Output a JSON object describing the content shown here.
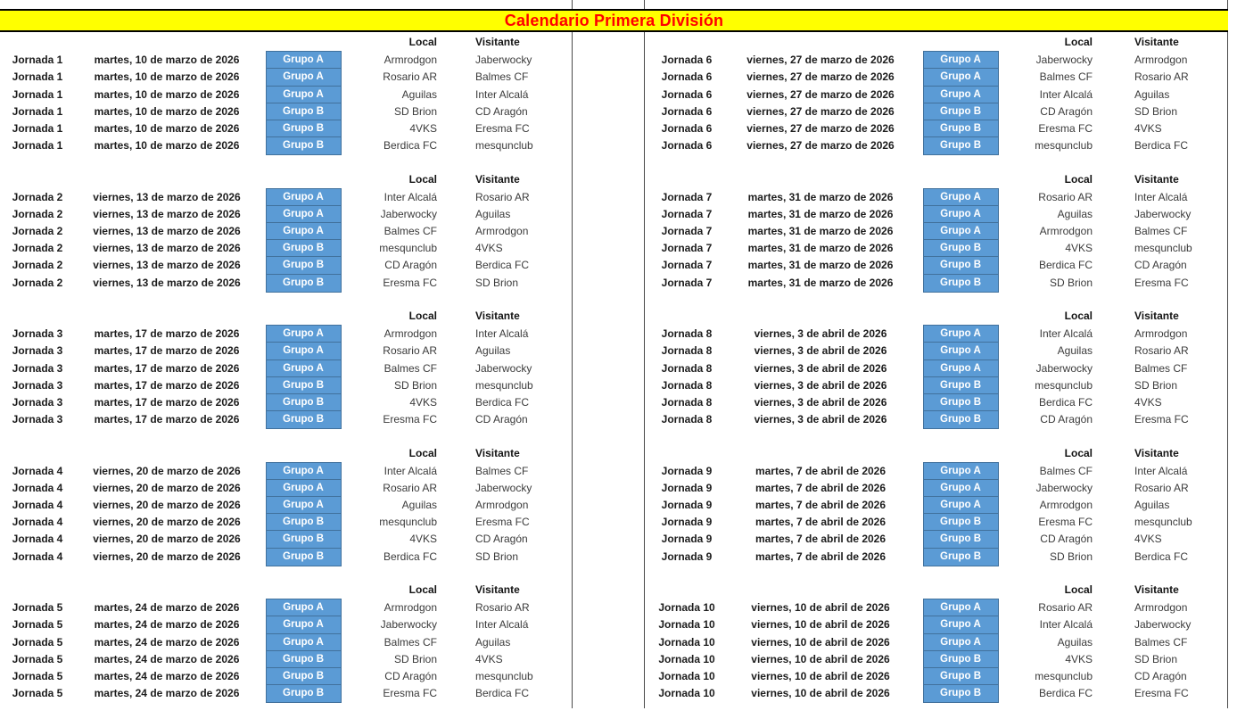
{
  "title": "Calendario Primera División",
  "headers": {
    "local": "Local",
    "visitante": "Visitante"
  },
  "colors": {
    "title_bg": "#FFFF00",
    "title_text": "#FF0000",
    "badge_bg": "#5B9BD5",
    "badge_border": "#41719C",
    "badge_text": "#FFFFFF",
    "grid_line": "#4a4a4a"
  },
  "jornadas": [
    {
      "label": "Jornada 1",
      "date": "martes, 10 de marzo de 2026",
      "matches": [
        {
          "group": "Grupo A",
          "local": "Armrodgon",
          "visitante": "Jaberwocky"
        },
        {
          "group": "Grupo A",
          "local": "Rosario AR",
          "visitante": "Balmes CF"
        },
        {
          "group": "Grupo A",
          "local": "Aguilas",
          "visitante": "Inter Alcalá"
        },
        {
          "group": "Grupo B",
          "local": "SD Brion",
          "visitante": "CD Aragón"
        },
        {
          "group": "Grupo B",
          "local": "4VKS",
          "visitante": "Eresma FC"
        },
        {
          "group": "Grupo B",
          "local": "Berdica FC",
          "visitante": "mesqunclub"
        }
      ]
    },
    {
      "label": "Jornada 2",
      "date": "viernes, 13 de marzo de 2026",
      "matches": [
        {
          "group": "Grupo A",
          "local": "Inter Alcalá",
          "visitante": "Rosario AR"
        },
        {
          "group": "Grupo A",
          "local": "Jaberwocky",
          "visitante": "Aguilas"
        },
        {
          "group": "Grupo A",
          "local": "Balmes CF",
          "visitante": "Armrodgon"
        },
        {
          "group": "Grupo B",
          "local": "mesqunclub",
          "visitante": "4VKS"
        },
        {
          "group": "Grupo B",
          "local": "CD Aragón",
          "visitante": "Berdica FC"
        },
        {
          "group": "Grupo B",
          "local": "Eresma FC",
          "visitante": "SD Brion"
        }
      ]
    },
    {
      "label": "Jornada 3",
      "date": "martes, 17 de marzo de 2026",
      "matches": [
        {
          "group": "Grupo A",
          "local": "Armrodgon",
          "visitante": "Inter Alcalá"
        },
        {
          "group": "Grupo A",
          "local": "Rosario AR",
          "visitante": "Aguilas"
        },
        {
          "group": "Grupo A",
          "local": "Balmes CF",
          "visitante": "Jaberwocky"
        },
        {
          "group": "Grupo B",
          "local": "SD Brion",
          "visitante": "mesqunclub"
        },
        {
          "group": "Grupo B",
          "local": "4VKS",
          "visitante": "Berdica FC"
        },
        {
          "group": "Grupo B",
          "local": "Eresma FC",
          "visitante": "CD Aragón"
        }
      ]
    },
    {
      "label": "Jornada 4",
      "date": "viernes, 20 de marzo de 2026",
      "matches": [
        {
          "group": "Grupo A",
          "local": "Inter Alcalá",
          "visitante": "Balmes CF"
        },
        {
          "group": "Grupo A",
          "local": "Rosario AR",
          "visitante": "Jaberwocky"
        },
        {
          "group": "Grupo A",
          "local": "Aguilas",
          "visitante": "Armrodgon"
        },
        {
          "group": "Grupo B",
          "local": "mesqunclub",
          "visitante": "Eresma FC"
        },
        {
          "group": "Grupo B",
          "local": "4VKS",
          "visitante": "CD Aragón"
        },
        {
          "group": "Grupo B",
          "local": "Berdica FC",
          "visitante": "SD Brion"
        }
      ]
    },
    {
      "label": "Jornada 5",
      "date": "martes, 24 de marzo de 2026",
      "matches": [
        {
          "group": "Grupo A",
          "local": "Armrodgon",
          "visitante": "Rosario AR"
        },
        {
          "group": "Grupo A",
          "local": "Jaberwocky",
          "visitante": "Inter Alcalá"
        },
        {
          "group": "Grupo A",
          "local": "Balmes CF",
          "visitante": "Aguilas"
        },
        {
          "group": "Grupo B",
          "local": "SD Brion",
          "visitante": "4VKS"
        },
        {
          "group": "Grupo B",
          "local": "CD Aragón",
          "visitante": "mesqunclub"
        },
        {
          "group": "Grupo B",
          "local": "Eresma FC",
          "visitante": "Berdica FC"
        }
      ]
    },
    {
      "label": "Jornada 6",
      "date": "viernes, 27 de marzo de 2026",
      "matches": [
        {
          "group": "Grupo A",
          "local": "Jaberwocky",
          "visitante": "Armrodgon"
        },
        {
          "group": "Grupo A",
          "local": "Balmes CF",
          "visitante": "Rosario AR"
        },
        {
          "group": "Grupo A",
          "local": "Inter Alcalá",
          "visitante": "Aguilas"
        },
        {
          "group": "Grupo B",
          "local": "CD Aragón",
          "visitante": "SD Brion"
        },
        {
          "group": "Grupo B",
          "local": "Eresma FC",
          "visitante": "4VKS"
        },
        {
          "group": "Grupo B",
          "local": "mesqunclub",
          "visitante": "Berdica FC"
        }
      ]
    },
    {
      "label": "Jornada 7",
      "date": "martes, 31 de marzo de 2026",
      "matches": [
        {
          "group": "Grupo A",
          "local": "Rosario AR",
          "visitante": "Inter Alcalá"
        },
        {
          "group": "Grupo A",
          "local": "Aguilas",
          "visitante": "Jaberwocky"
        },
        {
          "group": "Grupo A",
          "local": "Armrodgon",
          "visitante": "Balmes CF"
        },
        {
          "group": "Grupo B",
          "local": "4VKS",
          "visitante": "mesqunclub"
        },
        {
          "group": "Grupo B",
          "local": "Berdica FC",
          "visitante": "CD Aragón"
        },
        {
          "group": "Grupo B",
          "local": "SD Brion",
          "visitante": "Eresma FC"
        }
      ]
    },
    {
      "label": "Jornada 8",
      "date": "viernes, 3 de abril de 2026",
      "matches": [
        {
          "group": "Grupo A",
          "local": "Inter Alcalá",
          "visitante": "Armrodgon"
        },
        {
          "group": "Grupo A",
          "local": "Aguilas",
          "visitante": "Rosario AR"
        },
        {
          "group": "Grupo A",
          "local": "Jaberwocky",
          "visitante": "Balmes CF"
        },
        {
          "group": "Grupo B",
          "local": "mesqunclub",
          "visitante": "SD Brion"
        },
        {
          "group": "Grupo B",
          "local": "Berdica FC",
          "visitante": "4VKS"
        },
        {
          "group": "Grupo B",
          "local": "CD Aragón",
          "visitante": "Eresma FC"
        }
      ]
    },
    {
      "label": "Jornada 9",
      "date": "martes, 7 de abril de 2026",
      "matches": [
        {
          "group": "Grupo A",
          "local": "Balmes CF",
          "visitante": "Inter Alcalá"
        },
        {
          "group": "Grupo A",
          "local": "Jaberwocky",
          "visitante": "Rosario AR"
        },
        {
          "group": "Grupo A",
          "local": "Armrodgon",
          "visitante": "Aguilas"
        },
        {
          "group": "Grupo B",
          "local": "Eresma FC",
          "visitante": "mesqunclub"
        },
        {
          "group": "Grupo B",
          "local": "CD Aragón",
          "visitante": "4VKS"
        },
        {
          "group": "Grupo B",
          "local": "SD Brion",
          "visitante": "Berdica FC"
        }
      ]
    },
    {
      "label": "Jornada 10",
      "date": "viernes, 10 de abril de 2026",
      "matches": [
        {
          "group": "Grupo A",
          "local": "Rosario AR",
          "visitante": "Armrodgon"
        },
        {
          "group": "Grupo A",
          "local": "Inter Alcalá",
          "visitante": "Jaberwocky"
        },
        {
          "group": "Grupo A",
          "local": "Aguilas",
          "visitante": "Balmes CF"
        },
        {
          "group": "Grupo B",
          "local": "4VKS",
          "visitante": "SD Brion"
        },
        {
          "group": "Grupo B",
          "local": "mesqunclub",
          "visitante": "CD Aragón"
        },
        {
          "group": "Grupo B",
          "local": "Berdica FC",
          "visitante": "Eresma FC"
        }
      ]
    }
  ]
}
